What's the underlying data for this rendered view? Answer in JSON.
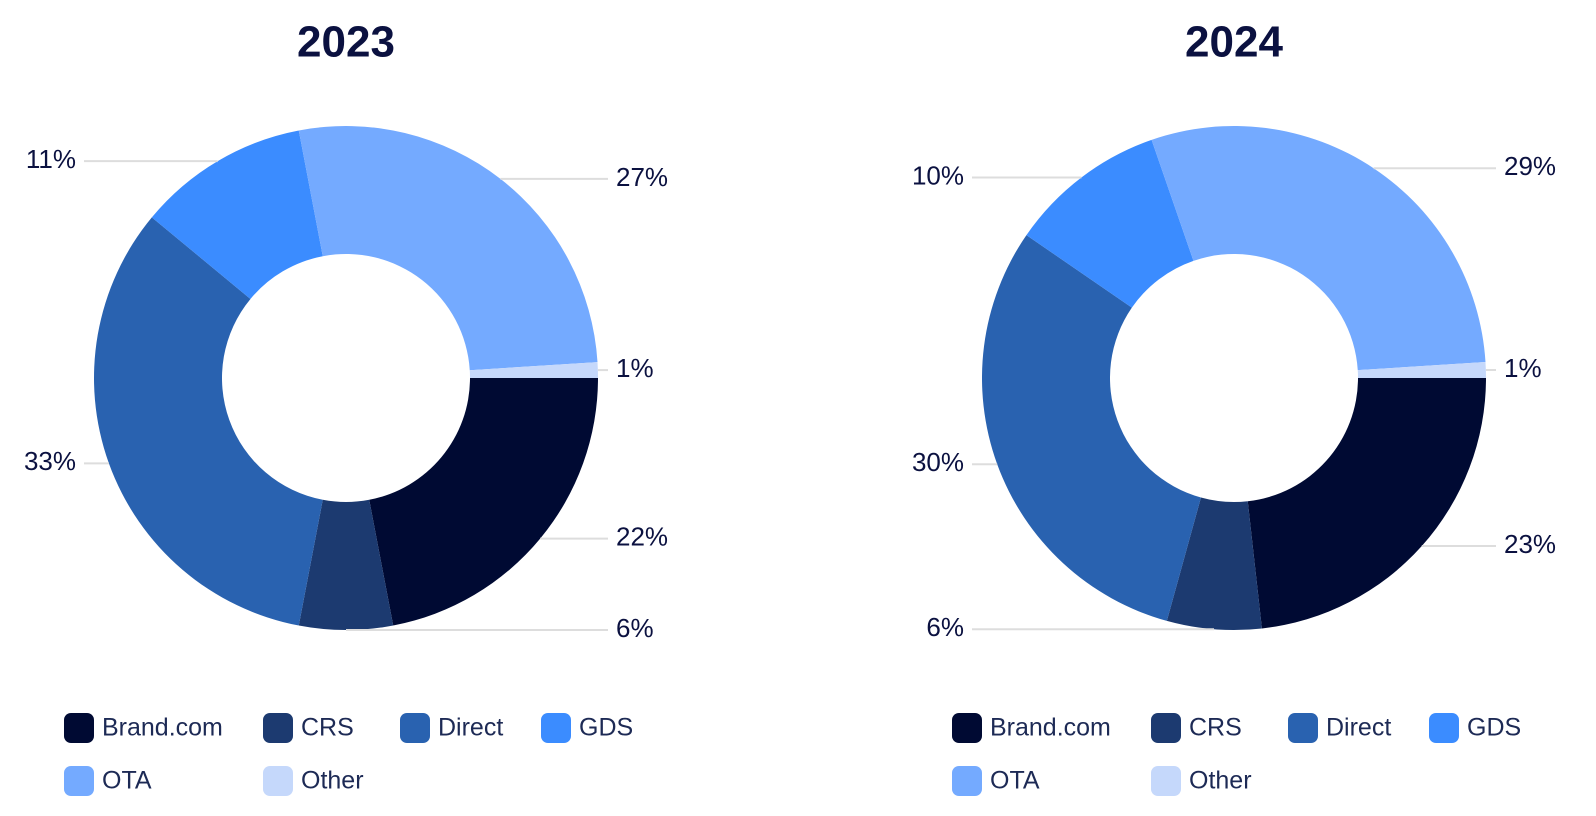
{
  "chart_data": [
    {
      "type": "donut",
      "title": "2023",
      "categories": [
        "Brand.com",
        "CRS",
        "Direct",
        "GDS",
        "OTA",
        "Other"
      ],
      "values": [
        22,
        6,
        33,
        11,
        27,
        1
      ],
      "value_labels": [
        "22%",
        "6%",
        "33%",
        "11%",
        "27%",
        "1%"
      ],
      "colors": [
        "#000a33",
        "#1c3a70",
        "#2962b0",
        "#3b8cff",
        "#74aaff",
        "#c5d8fb"
      ]
    },
    {
      "type": "donut",
      "title": "2024",
      "categories": [
        "Brand.com",
        "CRS",
        "Direct",
        "GDS",
        "OTA",
        "Other"
      ],
      "values": [
        23,
        6,
        30,
        10,
        29,
        1
      ],
      "value_labels": [
        "23%",
        "6%",
        "30%",
        "10%",
        "29%",
        "1%"
      ],
      "colors": [
        "#000a33",
        "#1c3a70",
        "#2962b0",
        "#3b8cff",
        "#74aaff",
        "#c5d8fb"
      ]
    }
  ]
}
